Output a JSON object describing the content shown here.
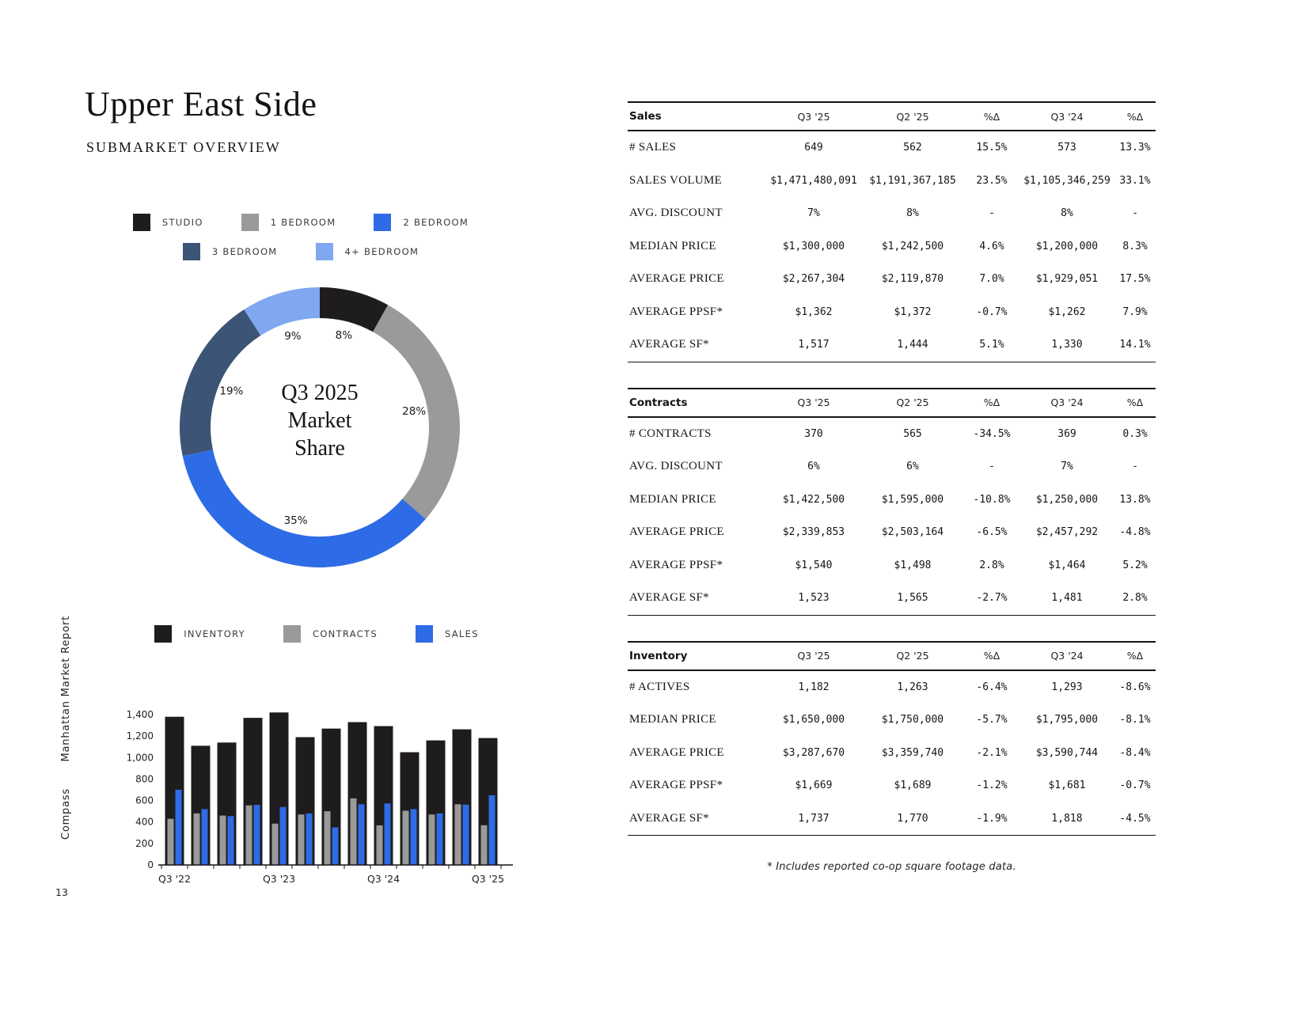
{
  "page": {
    "title": "Upper East Side",
    "subtitle": "SUBMARKET OVERVIEW",
    "page_number": "13",
    "sidebar_report": "Manhattan Market Report",
    "sidebar_brand": "Compass",
    "footnote": "* Includes reported co-op square footage data."
  },
  "colors": {
    "black": "#1f1c1d",
    "gray": "#9a9a9a",
    "blue": "#2e6be6",
    "navy": "#3c5476",
    "light_blue": "#7fa8f0"
  },
  "chart_data": [
    {
      "type": "pie",
      "title": "Q3 2025 Market Share",
      "center_label": [
        "Q3 2025",
        "Market",
        "Share"
      ],
      "legend_position": "top",
      "slices": [
        {
          "label": "STUDIO",
          "value": 8,
          "color": "#1f1c1d"
        },
        {
          "label": "1 BEDROOM",
          "value": 28,
          "color": "#9a9a9a"
        },
        {
          "label": "2 BEDROOM",
          "value": 35,
          "color": "#2e6be6"
        },
        {
          "label": "3 BEDROOM",
          "value": 19,
          "color": "#3c5476"
        },
        {
          "label": "4+ BEDROOM",
          "value": 9,
          "color": "#7fa8f0"
        }
      ]
    },
    {
      "type": "bar",
      "legend_position": "top",
      "x_tick_labels": [
        "Q3 '22",
        "Q3 '23",
        "Q3 '24",
        "Q3 '25"
      ],
      "x_tick_groups": [
        0,
        4,
        8,
        12
      ],
      "num_groups": 13,
      "ylim": [
        0,
        1400
      ],
      "yticks": [
        0,
        200,
        400,
        600,
        800,
        1000,
        1200,
        1400
      ],
      "series": [
        {
          "name": "INVENTORY",
          "color": "#1f1c1d",
          "values": [
            1380,
            1110,
            1140,
            1370,
            1420,
            1190,
            1270,
            1330,
            1293,
            1050,
            1160,
            1263,
            1182
          ]
        },
        {
          "name": "CONTRACTS",
          "color": "#9a9a9a",
          "values": [
            430,
            480,
            460,
            555,
            385,
            470,
            500,
            620,
            369,
            505,
            470,
            565,
            370
          ]
        },
        {
          "name": "SALES",
          "color": "#2e6be6",
          "values": [
            700,
            520,
            455,
            560,
            540,
            480,
            350,
            565,
            573,
            520,
            480,
            562,
            649
          ]
        }
      ]
    }
  ],
  "tables": [
    {
      "name": "Sales",
      "columns": [
        "Q3 '25",
        "Q2 '25",
        "%Δ",
        "Q3 '24",
        "%Δ"
      ],
      "rows": [
        {
          "label": "# SALES",
          "values": [
            "649",
            "562",
            "15.5%",
            "573",
            "13.3%"
          ]
        },
        {
          "label": "SALES VOLUME",
          "values": [
            "$1,471,480,091",
            "$1,191,367,185",
            "23.5%",
            "$1,105,346,259",
            "33.1%"
          ]
        },
        {
          "label": "AVG. DISCOUNT",
          "values": [
            "7%",
            "8%",
            "-",
            "8%",
            "-"
          ]
        },
        {
          "label": "MEDIAN PRICE",
          "values": [
            "$1,300,000",
            "$1,242,500",
            "4.6%",
            "$1,200,000",
            "8.3%"
          ]
        },
        {
          "label": "AVERAGE PRICE",
          "values": [
            "$2,267,304",
            "$2,119,870",
            "7.0%",
            "$1,929,051",
            "17.5%"
          ]
        },
        {
          "label": "AVERAGE PPSF*",
          "values": [
            "$1,362",
            "$1,372",
            "-0.7%",
            "$1,262",
            "7.9%"
          ]
        },
        {
          "label": "AVERAGE SF*",
          "values": [
            "1,517",
            "1,444",
            "5.1%",
            "1,330",
            "14.1%"
          ]
        }
      ]
    },
    {
      "name": "Contracts",
      "columns": [
        "Q3 '25",
        "Q2 '25",
        "%Δ",
        "Q3 '24",
        "%Δ"
      ],
      "rows": [
        {
          "label": "# CONTRACTS",
          "values": [
            "370",
            "565",
            "-34.5%",
            "369",
            "0.3%"
          ]
        },
        {
          "label": "AVG. DISCOUNT",
          "values": [
            "6%",
            "6%",
            "-",
            "7%",
            "-"
          ]
        },
        {
          "label": "MEDIAN PRICE",
          "values": [
            "$1,422,500",
            "$1,595,000",
            "-10.8%",
            "$1,250,000",
            "13.8%"
          ]
        },
        {
          "label": "AVERAGE PRICE",
          "values": [
            "$2,339,853",
            "$2,503,164",
            "-6.5%",
            "$2,457,292",
            "-4.8%"
          ]
        },
        {
          "label": "AVERAGE PPSF*",
          "values": [
            "$1,540",
            "$1,498",
            "2.8%",
            "$1,464",
            "5.2%"
          ]
        },
        {
          "label": "AVERAGE SF*",
          "values": [
            "1,523",
            "1,565",
            "-2.7%",
            "1,481",
            "2.8%"
          ]
        }
      ]
    },
    {
      "name": "Inventory",
      "columns": [
        "Q3 '25",
        "Q2 '25",
        "%Δ",
        "Q3 '24",
        "%Δ"
      ],
      "rows": [
        {
          "label": "# ACTIVES",
          "values": [
            "1,182",
            "1,263",
            "-6.4%",
            "1,293",
            "-8.6%"
          ]
        },
        {
          "label": "MEDIAN PRICE",
          "values": [
            "$1,650,000",
            "$1,750,000",
            "-5.7%",
            "$1,795,000",
            "-8.1%"
          ]
        },
        {
          "label": "AVERAGE PRICE",
          "values": [
            "$3,287,670",
            "$3,359,740",
            "-2.1%",
            "$3,590,744",
            "-8.4%"
          ]
        },
        {
          "label": "AVERAGE PPSF*",
          "values": [
            "$1,669",
            "$1,689",
            "-1.2%",
            "$1,681",
            "-0.7%"
          ]
        },
        {
          "label": "AVERAGE SF*",
          "values": [
            "1,737",
            "1,770",
            "-1.9%",
            "1,818",
            "-4.5%"
          ]
        }
      ]
    }
  ]
}
